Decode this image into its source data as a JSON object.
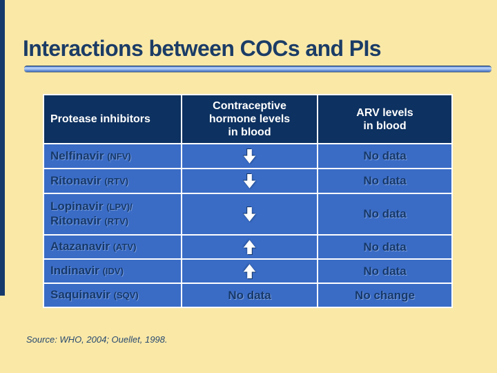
{
  "title": "Interactions between COCs and PIs",
  "source_note": "Source: WHO, 2004; Ouellet, 1998.",
  "colors": {
    "background": "#FAE8A7",
    "navy": "#16396B",
    "header_background": "#0D3160",
    "row_blue": "#3A6CC6",
    "cell_border": "#FFFFFF"
  },
  "icons": {
    "decrease": "down-arrow-icon",
    "increase": "up-arrow-icon"
  },
  "table": {
    "col1_header": "Protease inhibitors",
    "col2_header_lines": [
      "Contraceptive",
      "hormone levels",
      "in blood"
    ],
    "col3_header_lines": [
      "ARV levels",
      "in blood"
    ],
    "rows": [
      {
        "drug_lines": [
          {
            "name": "Nelfinavir",
            "abbr": "(NFV)"
          }
        ],
        "hormone_effect": "decrease",
        "arv_effect": "No data"
      },
      {
        "drug_lines": [
          {
            "name": "Ritonavir",
            "abbr": "(RTV)"
          }
        ],
        "hormone_effect": "decrease",
        "arv_effect": "No data"
      },
      {
        "drug_lines": [
          {
            "name": "Lopinavir",
            "abbr": "(LPV)/"
          },
          {
            "name": "Ritonavir",
            "abbr": "(RTV)"
          }
        ],
        "hormone_effect": "decrease",
        "arv_effect": "No data"
      },
      {
        "drug_lines": [
          {
            "name": "Atazanavir",
            "abbr": "(ATV)"
          }
        ],
        "hormone_effect": "increase",
        "arv_effect": "No data"
      },
      {
        "drug_lines": [
          {
            "name": "Indinavir",
            "abbr": "(IDV)"
          }
        ],
        "hormone_effect": "increase",
        "arv_effect": "No data"
      },
      {
        "drug_lines": [
          {
            "name": "Saquinavir",
            "abbr": "(SQV)"
          }
        ],
        "hormone_effect": "No data",
        "arv_effect": "No change"
      }
    ]
  }
}
